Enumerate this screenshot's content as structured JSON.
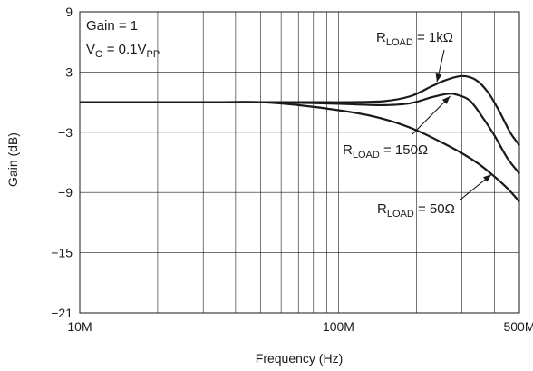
{
  "chart_data": {
    "type": "line",
    "title": "",
    "xlabel": "Frequency (Hz)",
    "ylabel": "Gain (dB)",
    "x_scale": "log",
    "xlim": [
      10000000,
      500000000
    ],
    "ylim": [
      -21,
      9
    ],
    "x_tick_labels": [
      "10M",
      "100M",
      "500M"
    ],
    "y_tick_labels": [
      "9",
      "3",
      "−3",
      "−9",
      "−15",
      "−21"
    ],
    "y_tick_values": [
      9,
      3,
      -3,
      -9,
      -15,
      -21
    ],
    "grid": true,
    "conditions": {
      "line1": "Gain = 1",
      "line2_main": "V",
      "line2_sub": "O",
      "line2_mid": " = 0.1V",
      "line2_sub2": "PP"
    },
    "series": [
      {
        "name": "R_LOAD = 1kΩ",
        "label_main": "R",
        "label_sub": "LOAD",
        "label_rest": " = 1kΩ",
        "x": [
          10000000,
          30000000,
          50000000,
          80000000,
          110000000,
          150000000,
          190000000,
          230000000,
          260000000,
          300000000,
          340000000,
          380000000,
          420000000,
          460000000,
          500000000
        ],
        "y": [
          0,
          0,
          0,
          0,
          0,
          0.1,
          0.6,
          1.6,
          2.2,
          2.6,
          2.2,
          0.9,
          -1.0,
          -3.0,
          -4.3
        ]
      },
      {
        "name": "R_LOAD = 150Ω",
        "label_main": "R",
        "label_sub": "LOAD",
        "label_rest": " = 150Ω",
        "x": [
          10000000,
          30000000,
          50000000,
          80000000,
          110000000,
          150000000,
          190000000,
          230000000,
          260000000,
          280000000,
          320000000,
          360000000,
          400000000,
          450000000,
          500000000
        ],
        "y": [
          0,
          0,
          0,
          -0.1,
          -0.2,
          -0.3,
          -0.1,
          0.5,
          0.8,
          0.8,
          0.2,
          -1.5,
          -3.3,
          -5.6,
          -7.1
        ]
      },
      {
        "name": "R_LOAD = 50Ω",
        "label_main": "R",
        "label_sub": "LOAD",
        "label_rest": " = 50Ω",
        "x": [
          10000000,
          30000000,
          50000000,
          70000000,
          100000000,
          130000000,
          160000000,
          200000000,
          250000000,
          300000000,
          350000000,
          400000000,
          450000000,
          500000000
        ],
        "y": [
          0,
          0,
          0,
          -0.3,
          -0.8,
          -1.3,
          -1.9,
          -2.8,
          -4.0,
          -5.1,
          -6.2,
          -7.4,
          -8.6,
          -9.9
        ]
      }
    ]
  }
}
